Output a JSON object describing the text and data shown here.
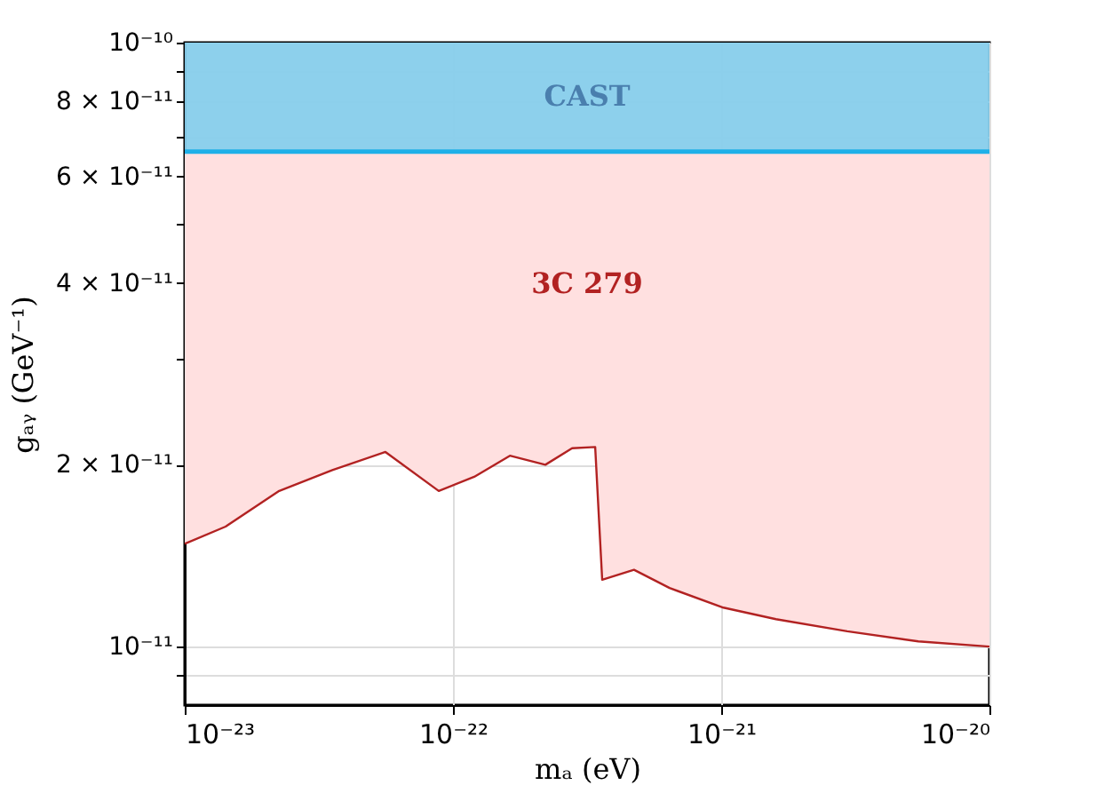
{
  "chart_data": {
    "type": "line",
    "xlabel": "mₐ (eV)",
    "ylabel": "gₐᵧ (GeV⁻¹)",
    "log": "xy",
    "grid": true,
    "xlim": [
      1e-23,
      1e-20
    ],
    "ylim": [
      8e-12,
      1e-10
    ],
    "xticks": [
      {
        "value": 1e-23,
        "label": "10⁻²³"
      },
      {
        "value": 1e-22,
        "label": "10⁻²²"
      },
      {
        "value": 1e-21,
        "label": "10⁻²¹"
      },
      {
        "value": 1e-20,
        "label": "10⁻²⁰"
      }
    ],
    "yticks": [
      {
        "value": 9e-12,
        "label": null
      },
      {
        "value": 1e-11,
        "label": "10⁻¹¹"
      },
      {
        "value": 2e-11,
        "label": "2 × 10⁻¹¹"
      },
      {
        "value": 3e-11,
        "label": null
      },
      {
        "value": 4e-11,
        "label": "4 × 10⁻¹¹"
      },
      {
        "value": 5e-11,
        "label": null
      },
      {
        "value": 6e-11,
        "label": "6 × 10⁻¹¹"
      },
      {
        "value": 7e-11,
        "label": null
      },
      {
        "value": 8e-11,
        "label": "8 × 10⁻¹¹"
      },
      {
        "value": 9e-11,
        "label": null
      },
      {
        "value": 1e-10,
        "label": "10⁻¹⁰"
      }
    ],
    "series": [
      {
        "name": "3C 279",
        "color": "#b22222",
        "x": [
          1e-23,
          1.42e-23,
          2.25e-23,
          3.55e-23,
          5.6e-23,
          8.85e-23,
          1.2e-22,
          1.63e-22,
          2.21e-22,
          2.78e-22,
          3.39e-22,
          3.6e-22,
          4.73e-22,
          6.42e-22,
          1.02e-21,
          1.6e-21,
          2.95e-21,
          5.43e-21,
          1e-20
        ],
        "values": [
          1.48e-11,
          1.58e-11,
          1.81e-11,
          1.96e-11,
          2.1e-11,
          1.81e-11,
          1.91e-11,
          2.07e-11,
          2e-11,
          2.13e-11,
          2.14e-11,
          1.29e-11,
          1.34e-11,
          1.25e-11,
          1.16e-11,
          1.11e-11,
          1.06e-11,
          1.02e-11,
          1e-11
        ],
        "lower": [
          1.48e-11,
          1.58e-11,
          1.81e-11,
          1.96e-11,
          2.1e-11,
          1.81e-11,
          1.91e-11,
          2.07e-11,
          2e-11,
          2.13e-11,
          2.14e-11,
          1.29e-11,
          1.34e-11,
          1.25e-11,
          1.16e-11,
          1.11e-11,
          1.06e-11,
          1.02e-11,
          1e-11
        ],
        "upper": [
          6.6e-11,
          6.6e-11,
          6.6e-11,
          6.6e-11,
          6.6e-11,
          6.6e-11,
          6.6e-11,
          6.6e-11,
          6.6e-11,
          6.6e-11,
          6.6e-11,
          6.6e-11,
          6.6e-11,
          6.6e-11,
          6.6e-11,
          6.6e-11,
          6.6e-11,
          6.6e-11,
          6.6e-11
        ]
      }
    ],
    "ref_lines": [
      {
        "axis": "y",
        "value": 6.6e-11,
        "color": "#1fb0e8"
      }
    ],
    "bands": [
      {
        "axis": "y",
        "from": 6.6e-11,
        "to": 1e-10,
        "label": "CAST",
        "color": "#87ceeb"
      }
    ]
  }
}
